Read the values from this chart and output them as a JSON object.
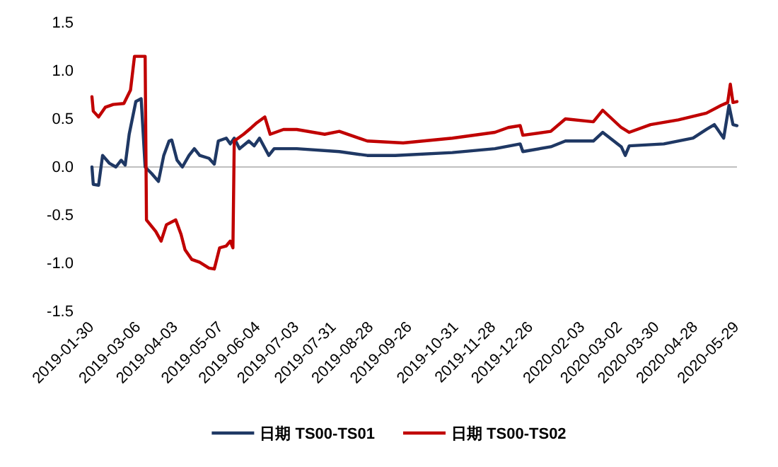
{
  "chart_data": {
    "type": "line",
    "x": [
      "2019-01-30",
      "2019-01-31",
      "2019-02-04",
      "2019-02-09",
      "2019-02-15",
      "2019-02-23",
      "2019-02-28",
      "2019-03-03",
      "2019-03-11",
      "2019-03-12",
      "2019-03-19",
      "2019-03-23",
      "2019-03-27",
      "2019-04-03",
      "2019-04-07",
      "2019-04-10",
      "2019-04-15",
      "2019-04-21",
      "2019-04-28",
      "2019-05-02",
      "2019-05-06",
      "2019-05-11",
      "2019-05-14",
      "2019-05-16",
      "2019-05-17",
      "2019-05-24",
      "2019-05-30",
      "2019-06-03",
      "2019-06-09",
      "2019-06-13",
      "2019-06-23",
      "2019-07-03",
      "2019-07-24",
      "2019-08-04",
      "2019-08-25",
      "2019-09-21",
      "2019-10-28",
      "2019-11-29",
      "2019-12-09",
      "2019-12-18",
      "2019-12-20",
      "2020-01-10",
      "2020-01-21",
      "2020-02-11",
      "2020-02-18",
      "2020-03-03",
      "2020-03-09",
      "2020-03-25",
      "2020-04-15",
      "2020-05-06",
      "2020-05-17",
      "2020-05-22",
      "2020-05-24",
      "2020-05-26",
      "2020-05-29"
    ],
    "series": [
      {
        "name": "日期 TS00-TS01",
        "color": "#1f3864",
        "x": [
          "2019-01-30",
          "2019-01-31",
          "2019-02-04",
          "2019-02-07",
          "2019-02-12",
          "2019-02-17",
          "2019-02-21",
          "2019-02-24",
          "2019-02-27",
          "2019-03-04",
          "2019-03-08",
          "2019-03-11",
          "2019-03-16",
          "2019-03-21",
          "2019-03-25",
          "2019-03-29",
          "2019-03-31",
          "2019-04-04",
          "2019-04-08",
          "2019-04-13",
          "2019-04-17",
          "2019-04-21",
          "2019-04-28",
          "2019-05-02",
          "2019-05-05",
          "2019-05-11",
          "2019-05-14",
          "2019-05-17",
          "2019-05-21",
          "2019-05-28",
          "2019-06-01",
          "2019-06-05",
          "2019-06-12",
          "2019-06-16",
          "2019-07-03",
          "2019-08-04",
          "2019-08-25",
          "2019-09-15",
          "2019-10-28",
          "2019-11-29",
          "2019-12-18",
          "2019-12-20",
          "2020-01-10",
          "2020-01-21",
          "2020-02-11",
          "2020-02-18",
          "2020-03-03",
          "2020-03-06",
          "2020-03-09",
          "2020-04-04",
          "2020-04-26",
          "2020-05-06",
          "2020-05-12",
          "2020-05-19",
          "2020-05-23",
          "2020-05-26",
          "2020-05-29"
        ],
        "values": [
          0.0,
          -0.18,
          -0.19,
          0.12,
          0.04,
          0.0,
          0.07,
          0.02,
          0.34,
          0.68,
          0.71,
          0.0,
          -0.07,
          -0.15,
          0.12,
          0.27,
          0.28,
          0.07,
          0.0,
          0.12,
          0.19,
          0.12,
          0.09,
          0.03,
          0.27,
          0.3,
          0.24,
          0.3,
          0.19,
          0.27,
          0.22,
          0.3,
          0.12,
          0.19,
          0.19,
          0.16,
          0.12,
          0.12,
          0.15,
          0.19,
          0.24,
          0.16,
          0.21,
          0.27,
          0.27,
          0.36,
          0.21,
          0.12,
          0.22,
          0.24,
          0.3,
          0.39,
          0.44,
          0.3,
          0.64,
          0.44,
          0.43
        ]
      },
      {
        "name": "日期 TS00-TS02",
        "color": "#c00000",
        "values": [
          0.73,
          0.58,
          0.52,
          0.62,
          0.65,
          0.66,
          0.8,
          1.15,
          1.15,
          -0.55,
          -0.67,
          -0.77,
          -0.6,
          -0.55,
          -0.7,
          -0.86,
          -0.96,
          -0.99,
          -1.05,
          -1.06,
          -0.84,
          -0.82,
          -0.77,
          -0.84,
          0.27,
          0.34,
          0.41,
          0.46,
          0.52,
          0.34,
          0.39,
          0.39,
          0.34,
          0.37,
          0.27,
          0.25,
          0.3,
          0.36,
          0.41,
          0.43,
          0.33,
          0.37,
          0.5,
          0.47,
          0.59,
          0.41,
          0.36,
          0.44,
          0.49,
          0.56,
          0.64,
          0.67,
          0.86,
          0.67,
          0.68
        ]
      }
    ],
    "xlim": [
      "2019-01-30",
      "2020-05-29"
    ],
    "xticks": [
      "2019-01-30",
      "2019-03-06",
      "2019-04-03",
      "2019-05-07",
      "2019-06-04",
      "2019-07-03",
      "2019-07-31",
      "2019-08-28",
      "2019-09-26",
      "2019-10-31",
      "2019-11-28",
      "2019-12-26",
      "2020-02-03",
      "2020-03-02",
      "2020-03-30",
      "2020-04-28",
      "2020-05-29"
    ],
    "ylim": [
      -1.5,
      1.5
    ],
    "yticks": [
      {
        "value": -1.5,
        "label": "-1.5"
      },
      {
        "value": -1.0,
        "label": "-1.0"
      },
      {
        "value": -0.5,
        "label": "-0.5"
      },
      {
        "value": 0,
        "label": "0.0"
      },
      {
        "value": 0.5,
        "label": "0.5"
      },
      {
        "value": 1.0,
        "label": "1.0"
      },
      {
        "value": 1.5,
        "label": "1.5"
      }
    ],
    "legend": "bottom",
    "marker": "none",
    "line_style": "solid"
  }
}
